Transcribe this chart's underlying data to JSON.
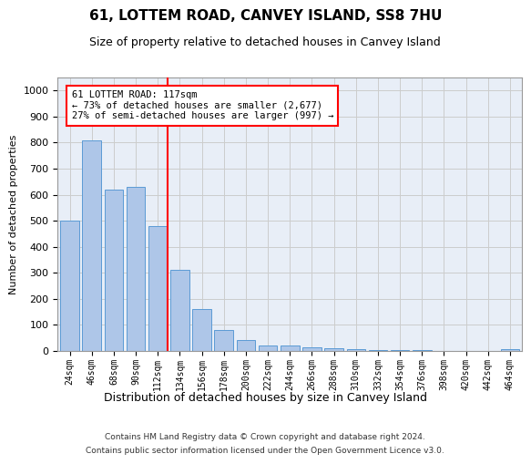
{
  "title": "61, LOTTEM ROAD, CANVEY ISLAND, SS8 7HU",
  "subtitle": "Size of property relative to detached houses in Canvey Island",
  "xlabel": "Distribution of detached houses by size in Canvey Island",
  "ylabel": "Number of detached properties",
  "footer_line1": "Contains HM Land Registry data © Crown copyright and database right 2024.",
  "footer_line2": "Contains public sector information licensed under the Open Government Licence v3.0.",
  "categories": [
    "24sqm",
    "46sqm",
    "68sqm",
    "90sqm",
    "112sqm",
    "134sqm",
    "156sqm",
    "178sqm",
    "200sqm",
    "222sqm",
    "244sqm",
    "266sqm",
    "288sqm",
    "310sqm",
    "332sqm",
    "354sqm",
    "376sqm",
    "398sqm",
    "420sqm",
    "442sqm",
    "464sqm"
  ],
  "values": [
    500,
    810,
    620,
    630,
    480,
    310,
    160,
    82,
    43,
    22,
    22,
    15,
    11,
    8,
    5,
    3,
    2,
    1,
    1,
    0,
    8
  ],
  "bar_color": "#aec6e8",
  "bar_edge_color": "#5b9bd5",
  "vline_index": 4,
  "vline_color": "red",
  "annotation_line1": "61 LOTTEM ROAD: 117sqm",
  "annotation_line2": "← 73% of detached houses are smaller (2,677)",
  "annotation_line3": "27% of semi-detached houses are larger (997) →",
  "ylim": [
    0,
    1050
  ],
  "yticks": [
    0,
    100,
    200,
    300,
    400,
    500,
    600,
    700,
    800,
    900,
    1000
  ],
  "grid_color": "#cccccc",
  "background_color": "#e8eef7"
}
